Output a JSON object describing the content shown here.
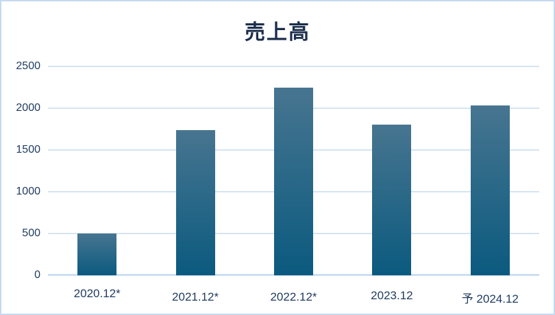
{
  "chart_data": {
    "type": "bar",
    "title": "売上高",
    "categories": [
      "2020.12*",
      "2021.12*",
      "2022.12*",
      "2023.12",
      "予 2024.12"
    ],
    "values": [
      500,
      1740,
      2250,
      1800,
      2030
    ],
    "xlabel": "",
    "ylabel": "",
    "ylim": [
      0,
      2500
    ],
    "yticks": [
      0,
      500,
      1000,
      1500,
      2000,
      2500
    ],
    "grid": true,
    "legend": false,
    "colors": {
      "bar_gradient_top": "#477590",
      "bar_gradient_bottom": "#0b5a7f",
      "gridline": "#d5e4f4",
      "zero_axis_line": "#cddff2",
      "tick_label": "#1e3a5f",
      "title": "#1b2e4b",
      "frame_border": "#c5d9f0",
      "background": "#ffffff"
    }
  }
}
